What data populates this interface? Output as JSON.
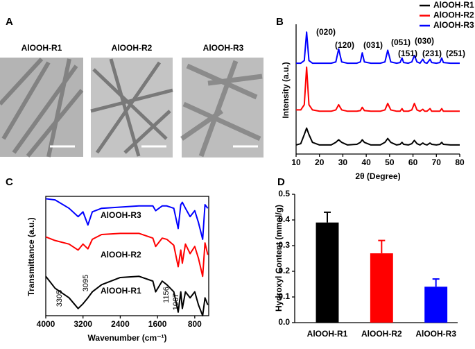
{
  "figure": {
    "panel_labels": [
      "A",
      "B",
      "C",
      "D"
    ],
    "images": [
      "AlOOH-R1",
      "AlOOH-R2",
      "AlOOH-R3"
    ]
  },
  "chart_data": [
    {
      "type": "line",
      "xlabel": "2θ (Degree)",
      "ylabel": "Intensity (a.u.)",
      "xlim": [
        10,
        80
      ],
      "ylim": [
        0,
        100
      ],
      "xticks": [
        10,
        20,
        30,
        40,
        50,
        60,
        70,
        80
      ],
      "legend": "upper right",
      "x": [
        10,
        12,
        13.5,
        14.5,
        15.5,
        17,
        20,
        25,
        27,
        28.2,
        29.5,
        32,
        36,
        37.5,
        38.3,
        39.2,
        42,
        46,
        48,
        49.2,
        50.5,
        53,
        54.5,
        55.3,
        56,
        58,
        59.5,
        60.6,
        61.7,
        63,
        64.2,
        65,
        66,
        67.3,
        68,
        70,
        71.5,
        72.3,
        73,
        76,
        80
      ],
      "series": [
        {
          "name": "AlOOH-R1",
          "color": "#000000",
          "values": [
            7,
            8,
            15,
            20,
            15,
            9,
            7,
            7,
            9,
            11,
            9,
            7,
            7.5,
            9,
            11,
            9,
            7,
            7,
            9,
            12,
            9,
            7,
            7.5,
            9,
            7.5,
            7,
            8,
            10.5,
            8,
            7,
            8.5,
            7.5,
            7,
            8.5,
            7.5,
            7,
            7.5,
            9,
            7.5,
            7,
            7
          ]
        },
        {
          "name": "AlOOH-R2",
          "color": "#ff0000",
          "values": [
            34,
            34,
            38,
            67,
            38,
            34,
            33,
            33,
            34,
            38,
            34,
            33,
            33,
            33.5,
            36,
            33.5,
            33,
            33,
            34,
            39,
            34,
            33,
            33,
            35,
            33,
            33,
            34,
            39,
            34,
            33,
            34.5,
            33,
            33,
            35,
            33,
            33,
            33,
            35,
            33,
            33,
            33
          ]
        },
        {
          "name": "AlOOH-R3",
          "color": "#0000ff",
          "values": [
            70,
            70,
            72,
            94,
            72,
            70,
            70,
            70,
            71,
            81,
            71,
            70,
            70,
            71,
            78,
            71,
            70,
            70,
            71,
            80,
            71,
            70,
            70.5,
            74,
            70.5,
            70,
            71,
            76,
            71,
            70,
            73,
            70.5,
            70,
            73,
            70.5,
            70,
            70.5,
            74,
            70.5,
            70,
            70
          ]
        }
      ],
      "annotations": [
        "(020)",
        "(120)",
        "(031)",
        "(051)",
        "(030)",
        "(151)",
        "(231)",
        "(251)"
      ]
    },
    {
      "type": "line",
      "xlabel": "Wavenumber (cm⁻¹)",
      "ylabel": "Transmittance (a.u.)",
      "xlim": [
        4000,
        500
      ],
      "ylim": [
        0,
        100
      ],
      "xticks": [
        4000,
        3200,
        2400,
        1600,
        800
      ],
      "x": [
        4000,
        3800,
        3500,
        3305,
        3200,
        3095,
        3000,
        2800,
        2400,
        2000,
        1700,
        1640,
        1500,
        1400,
        1250,
        1156,
        1100,
        1067,
        1000,
        900,
        800,
        720,
        630,
        580,
        520
      ],
      "series": [
        {
          "name": "AlOOH-R1",
          "color": "#000000",
          "values": [
            33,
            23,
            15,
            6,
            10,
            15,
            20,
            26,
            32,
            33,
            29,
            20,
            29,
            26,
            20,
            3,
            20,
            6,
            20,
            15,
            20,
            9,
            0,
            15,
            9
          ]
        },
        {
          "name": "AlOOH-R2",
          "color": "#ff0000",
          "values": [
            66,
            63,
            60,
            55,
            60,
            56,
            64,
            68,
            69,
            69,
            65,
            58,
            65,
            64,
            59,
            41,
            55,
            44,
            60,
            52,
            58,
            48,
            33,
            61,
            51
          ]
        },
        {
          "name": "AlOOH-R3",
          "color": "#0000ff",
          "values": [
            98,
            97,
            90,
            83,
            87,
            76,
            87,
            90,
            91,
            92,
            92,
            88,
            92,
            92,
            90,
            73,
            93,
            95,
            90,
            83,
            88,
            78,
            64,
            93,
            90
          ]
        }
      ],
      "annotations": [
        "3305",
        "3095",
        "1156",
        "1067"
      ]
    },
    {
      "type": "bar",
      "ylabel": "Hydroxyl Content (mmol/g)",
      "categories": [
        "AlOOH-R1",
        "AlOOH-R2",
        "AlOOH-R3"
      ],
      "values": [
        0.39,
        0.27,
        0.14
      ],
      "errors": [
        0.04,
        0.05,
        0.03
      ],
      "colors": [
        "#000000",
        "#ff0000",
        "#0000ff"
      ],
      "ylim": [
        0,
        0.5
      ],
      "yticks": [
        {
          "value": 0,
          "label": "0.0"
        },
        0.1,
        0.2,
        0.3,
        0.4,
        0.5
      ]
    }
  ]
}
